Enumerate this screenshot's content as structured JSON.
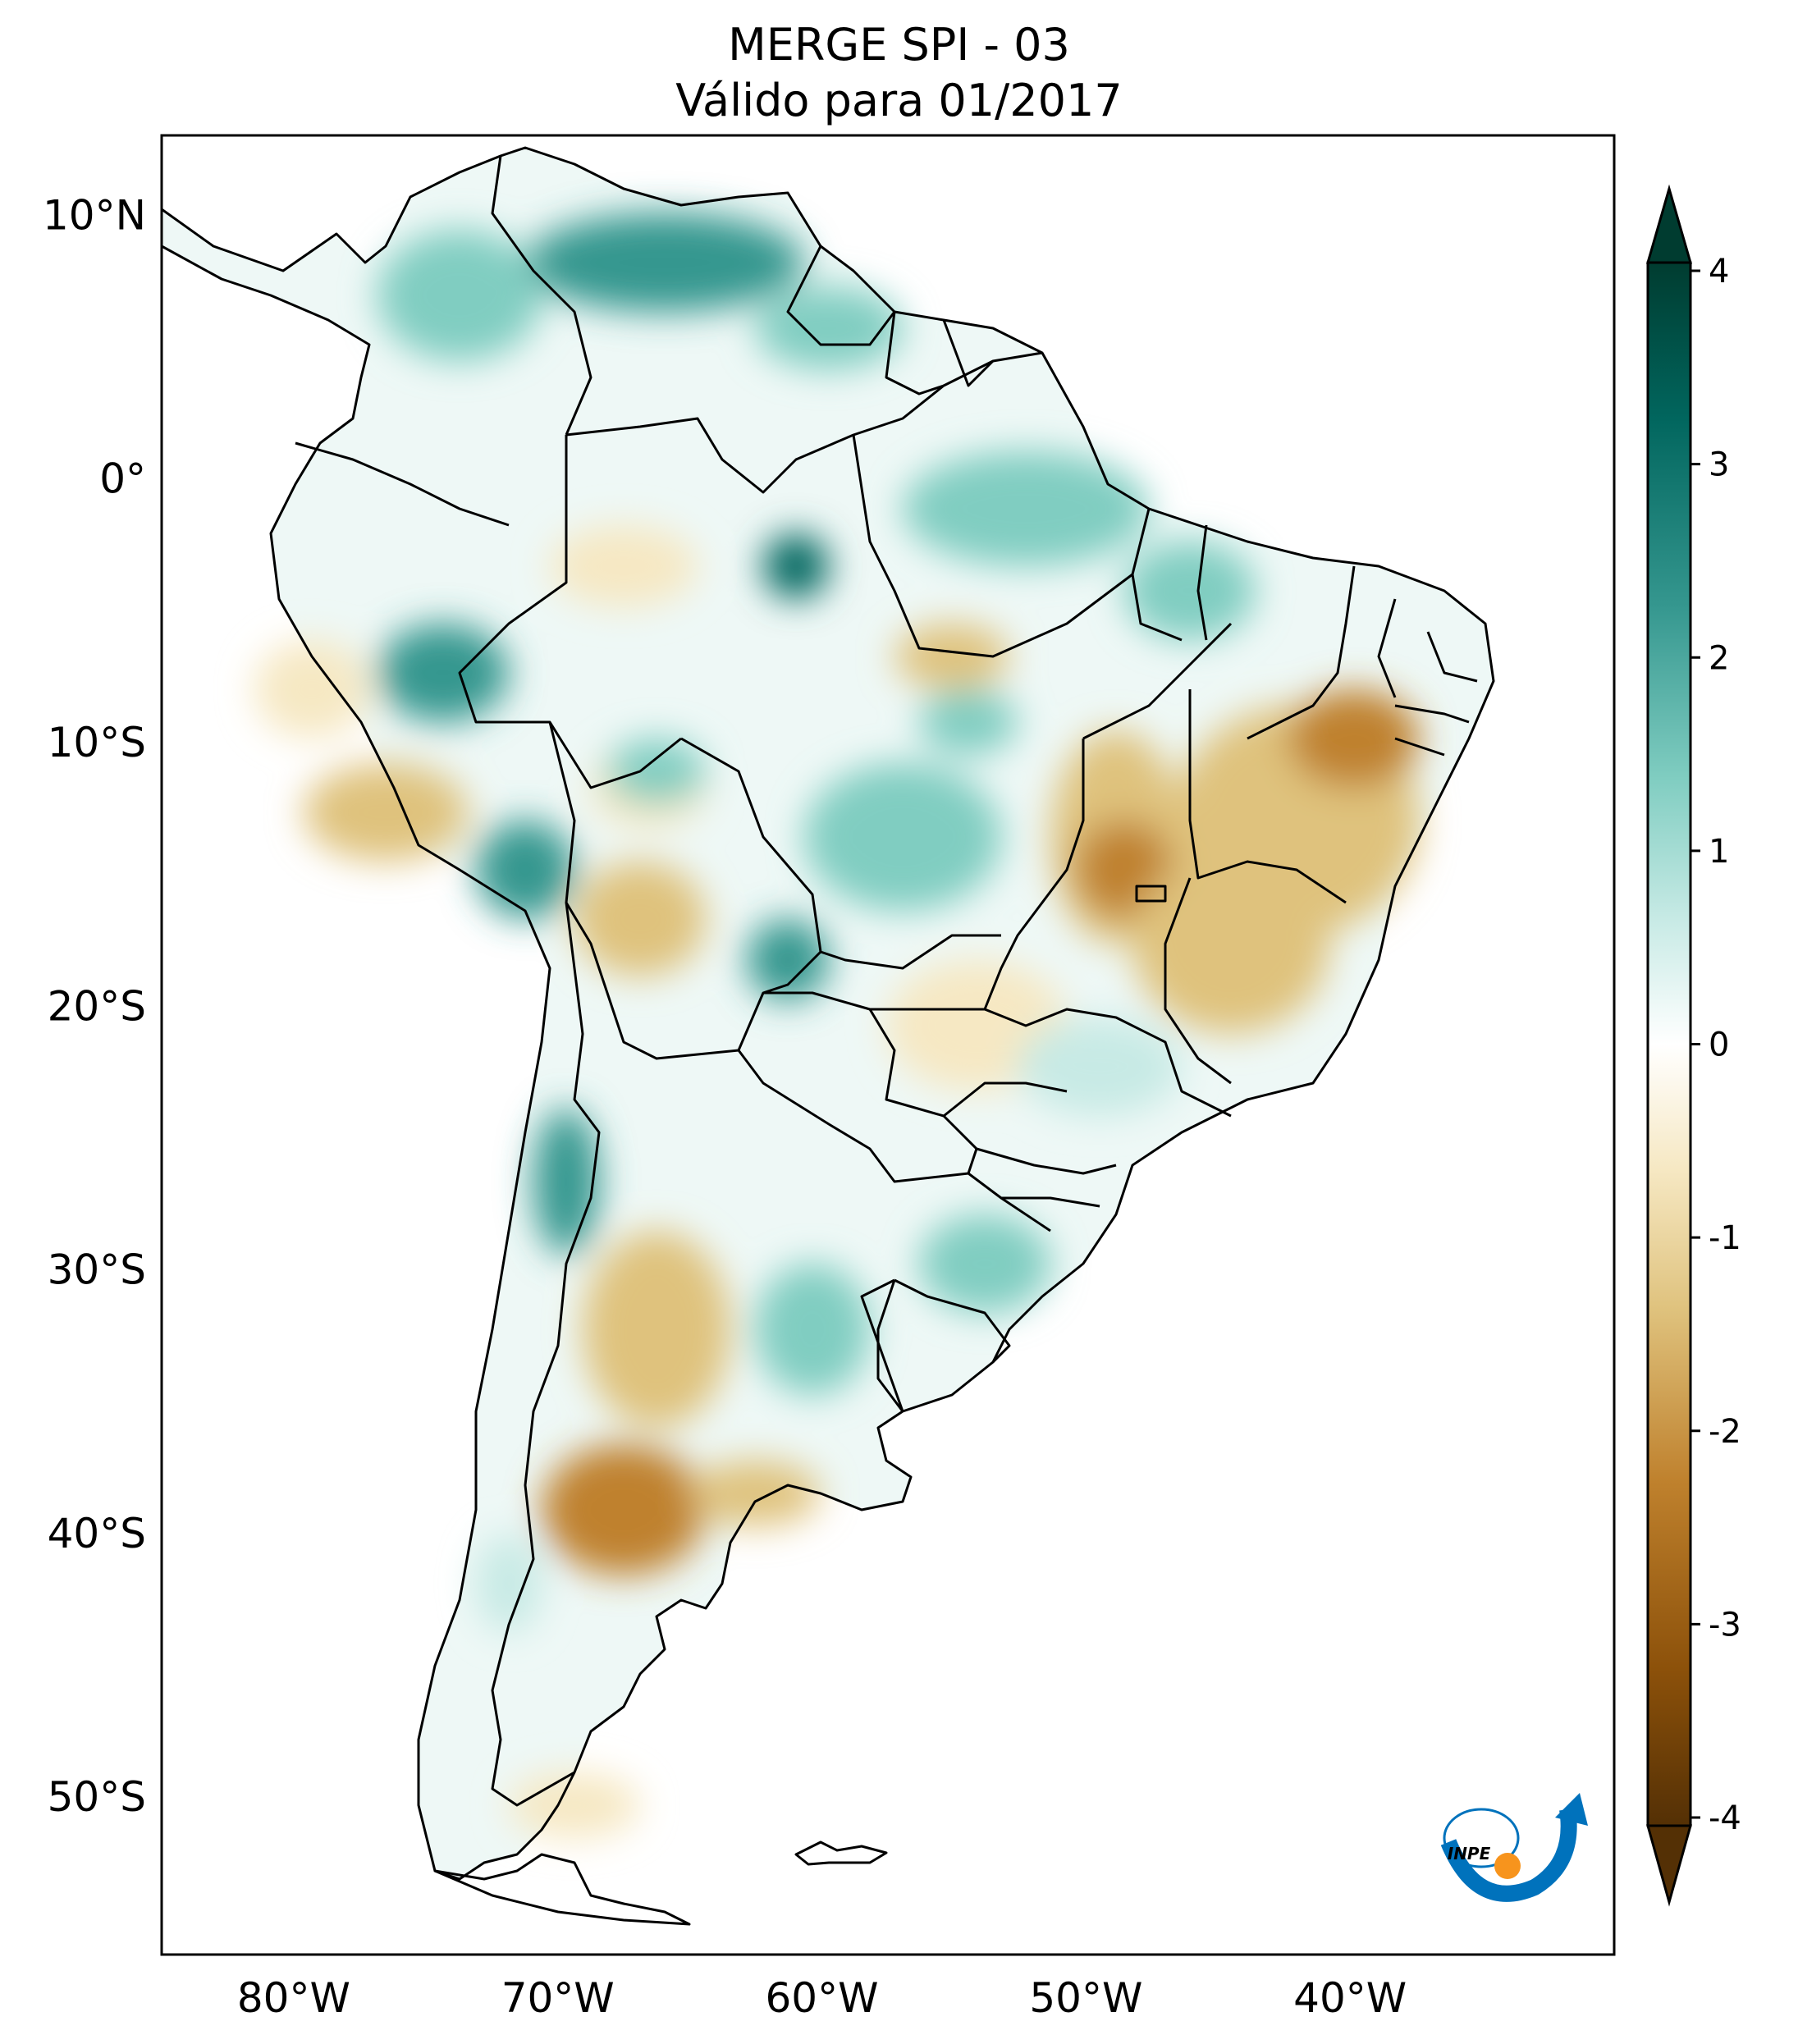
{
  "title": {
    "line1": "MERGE   SPI - 03",
    "line2": "Válido para 01/2017"
  },
  "map": {
    "lon_range": [
      -85,
      -30
    ],
    "lat_range": [
      -56,
      13
    ],
    "lat_ticks": [
      {
        "value": 10,
        "label": "10°N"
      },
      {
        "value": 0,
        "label": "0°"
      },
      {
        "value": -10,
        "label": "10°S"
      },
      {
        "value": -20,
        "label": "20°S"
      },
      {
        "value": -30,
        "label": "30°S"
      },
      {
        "value": -40,
        "label": "40°S"
      },
      {
        "value": -50,
        "label": "50°S"
      }
    ],
    "lon_ticks": [
      {
        "value": -80,
        "label": "80°W"
      },
      {
        "value": -70,
        "label": "70°W"
      },
      {
        "value": -60,
        "label": "60°W"
      },
      {
        "value": -50,
        "label": "50°W"
      },
      {
        "value": -40,
        "label": "40°W"
      }
    ]
  },
  "colorbar": {
    "min": -4,
    "max": 4,
    "ticks": [
      "4",
      "3",
      "2",
      "1",
      "0",
      "-1",
      "-2",
      "-3",
      "-4"
    ],
    "colors": [
      "#543005",
      "#8c510a",
      "#bf812d",
      "#dfc27d",
      "#f6e8c3",
      "#ffffff",
      "#c7eae5",
      "#80cdc1",
      "#35978f",
      "#01665e",
      "#003c30"
    ]
  },
  "logo": {
    "text": "INPE"
  }
}
